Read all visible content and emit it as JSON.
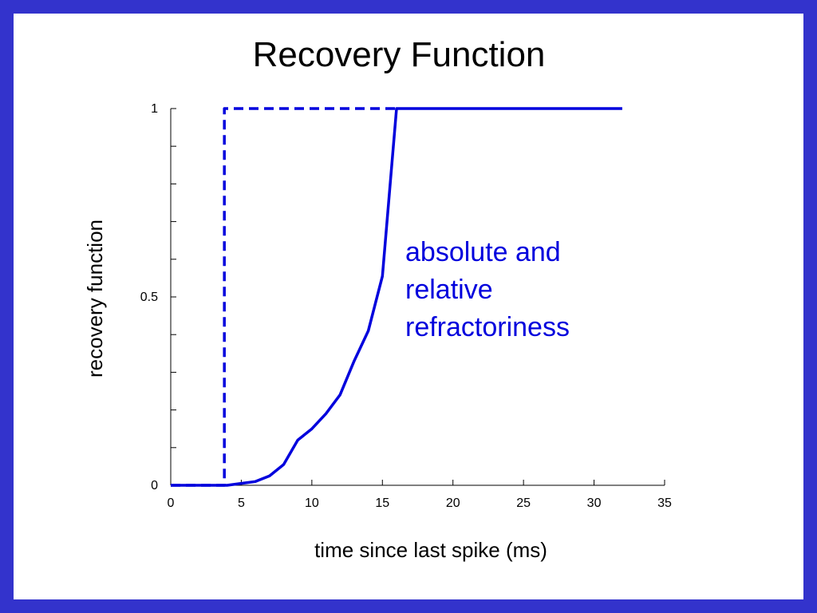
{
  "slide": {
    "title": "Recovery Function",
    "border_color": "#3333cc",
    "background": "#ffffff"
  },
  "chart_data": {
    "type": "line",
    "title": "",
    "xlabel": "time since last spike (ms)",
    "ylabel": "recovery function",
    "xlim": [
      0,
      35
    ],
    "ylim": [
      0,
      1
    ],
    "xticks": [
      0,
      5,
      10,
      15,
      20,
      25,
      30,
      35
    ],
    "xtick_labels": [
      "0",
      "5",
      "10",
      "15",
      "20",
      "25",
      "30",
      "35"
    ],
    "yticks": [
      0,
      0.5,
      1
    ],
    "ytick_labels": [
      "0",
      "0.5",
      "1"
    ],
    "y_minor_ticks": [
      0.1,
      0.2,
      0.3,
      0.4,
      0.6,
      0.7,
      0.8,
      0.9
    ],
    "grid": false,
    "series": [
      {
        "style": "solid",
        "color": "#0000dd",
        "x": [
          0,
          2,
          4,
          5,
          6,
          7,
          8,
          9,
          10,
          11,
          12,
          13,
          14,
          15,
          16,
          20,
          25,
          30,
          32
        ],
        "y": [
          0,
          0,
          0,
          0.005,
          0.01,
          0.025,
          0.055,
          0.12,
          0.15,
          0.19,
          0.24,
          0.33,
          0.41,
          0.555,
          1,
          1,
          1,
          1,
          1
        ]
      },
      {
        "style": "dashed",
        "color": "#0000dd",
        "x": [
          0,
          3.8,
          3.8,
          16
        ],
        "y": [
          0,
          0,
          1,
          1
        ]
      }
    ],
    "annotation": {
      "lines": [
        "absolute and",
        "relative",
        "refractoriness"
      ],
      "color": "#0000dd"
    }
  }
}
